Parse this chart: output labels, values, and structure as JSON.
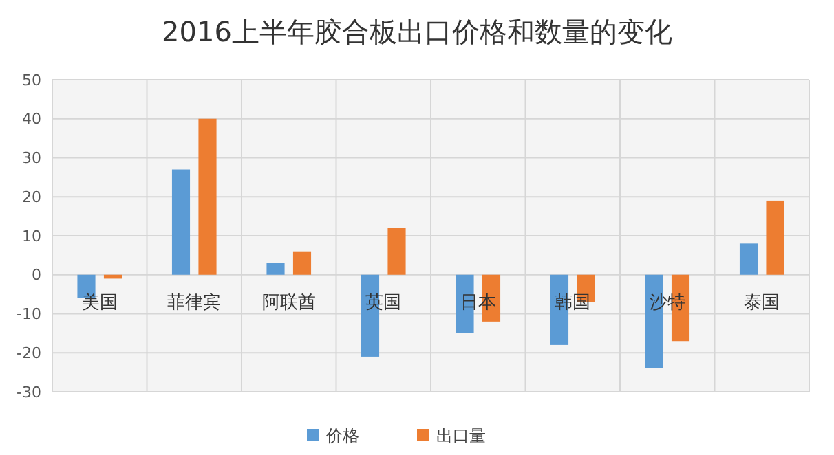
{
  "chart_data": {
    "type": "bar",
    "title": "2016上半年胶合板出口价格和数量的变化",
    "categories": [
      "美国",
      "菲律宾",
      "阿联酋",
      "英国",
      "日本",
      "韩国",
      "沙特",
      "泰国"
    ],
    "series": [
      {
        "name": "价格",
        "color": "#5b9bd5",
        "values": [
          -6,
          27,
          3,
          -21,
          -15,
          -18,
          -24,
          8
        ]
      },
      {
        "name": "出口量",
        "color": "#ed7d31",
        "values": [
          -1,
          40,
          6,
          12,
          -12,
          -7,
          -17,
          19
        ]
      }
    ],
    "ylim": [
      -30,
      50
    ],
    "yticks": [
      -30,
      -20,
      -10,
      0,
      10,
      20,
      30,
      40,
      50
    ],
    "grid": true,
    "legend": "bottom"
  }
}
